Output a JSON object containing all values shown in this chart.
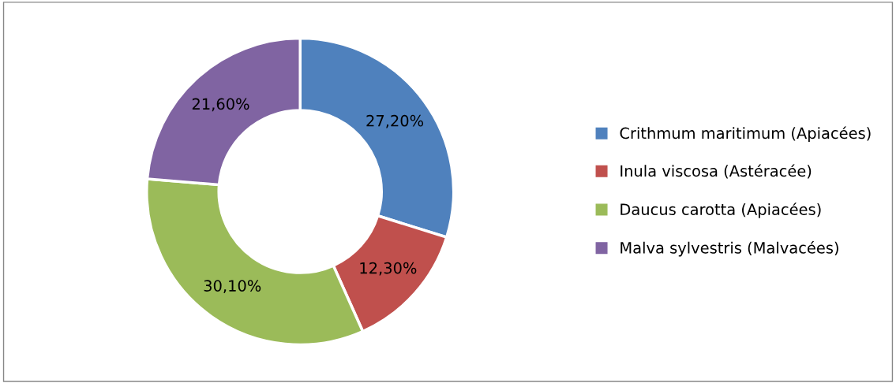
{
  "chart_data": {
    "type": "donut",
    "categories": [
      "Crithmum maritimum (Apiacées)",
      "Inula viscosa (Astéracée)",
      "Daucus carotta (Apiacées)",
      "Malva sylvestris (Malvacées)"
    ],
    "values": [
      27.2,
      12.3,
      30.1,
      21.6
    ],
    "colors": [
      "#4f81bd",
      "#c0504d",
      "#9bbb59",
      "#8064a2"
    ],
    "value_labels": [
      "27,20%",
      "12,30%",
      "30,10%",
      "21,60%"
    ],
    "legend": "right"
  }
}
